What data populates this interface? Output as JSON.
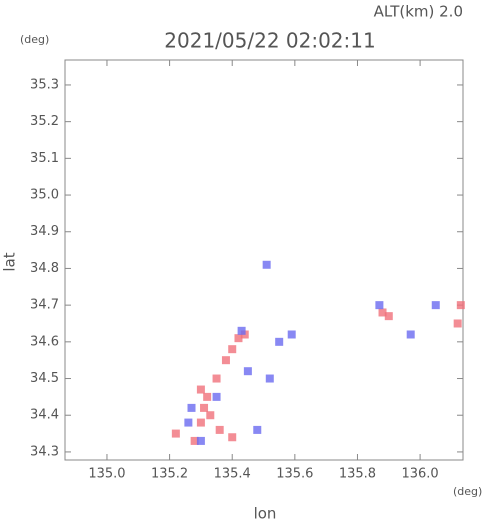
{
  "chart_data": {
    "type": "scatter",
    "title": "2021/05/22 02:02:11",
    "subtitle": "ALT(km) 2.0",
    "y_unit": "(deg)",
    "x_unit": "(deg)",
    "xlabel": "lon",
    "ylabel": "lat",
    "xlim": [
      134.866,
      136.137
    ],
    "ylim": [
      34.278,
      35.368
    ],
    "xticks": [
      {
        "value": 135.0,
        "label": "135.0"
      },
      135.2,
      135.4,
      135.6,
      135.8,
      {
        "value": 136.0,
        "label": "136.0"
      }
    ],
    "yticks": [
      34.3,
      34.4,
      34.5,
      34.6,
      34.7,
      34.8,
      34.9,
      {
        "value": 35.0,
        "label": "35.0"
      },
      35.1,
      35.2,
      35.3
    ],
    "series": [
      {
        "color": "#f0707a",
        "x": [
          135.3,
          135.32,
          135.35,
          135.38,
          135.4,
          135.42,
          135.3,
          135.33,
          135.36,
          135.28,
          135.4,
          135.22,
          135.88,
          135.9,
          136.13,
          136.12,
          135.31,
          135.44
        ],
        "y": [
          34.47,
          34.45,
          34.5,
          34.55,
          34.58,
          34.61,
          34.38,
          34.4,
          34.36,
          34.33,
          34.34,
          34.35,
          34.68,
          34.67,
          34.7,
          34.65,
          34.42,
          34.62
        ]
      },
      {
        "color": "#6a6af0",
        "x": [
          135.27,
          135.26,
          135.35,
          135.43,
          135.51,
          135.55,
          135.59,
          135.52,
          135.87,
          135.97,
          136.05,
          135.48,
          135.3,
          135.45
        ],
        "y": [
          34.42,
          34.38,
          34.45,
          34.63,
          34.81,
          34.6,
          34.62,
          34.5,
          34.7,
          34.62,
          34.7,
          34.36,
          34.33,
          34.52
        ]
      }
    ]
  }
}
